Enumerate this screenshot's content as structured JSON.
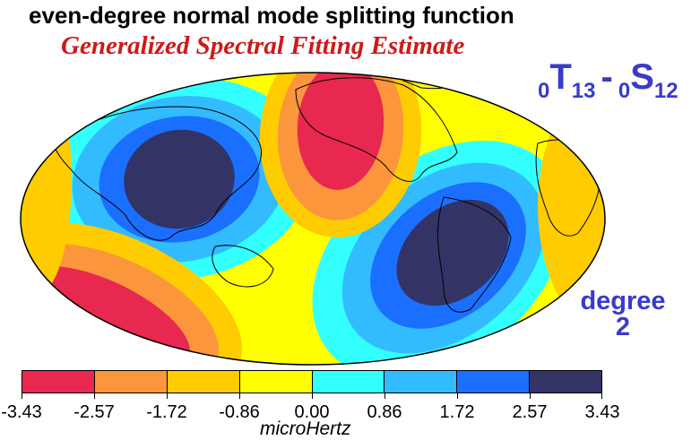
{
  "title": "even-degree normal mode splitting function",
  "subtitle": "Generalized Spectral Fitting Estimate",
  "mode": {
    "t_prefix": "0",
    "t_letter": "T",
    "t_sub": "13",
    "separator": "-",
    "s_prefix": "0",
    "s_letter": "S",
    "s_sub": "12"
  },
  "degree": {
    "word": "degree",
    "value": "2"
  },
  "colorbar": {
    "unit": "microHertz",
    "ticks": [
      "-3.43",
      "-2.57",
      "-1.72",
      "-0.86",
      "0.00",
      "0.86",
      "1.72",
      "2.57",
      "3.43"
    ],
    "colors": [
      "#e8284e",
      "#fb963c",
      "#ffcc00",
      "#ffff00",
      "#33ffff",
      "#33bbff",
      "#1a6fff",
      "#333366"
    ]
  },
  "map": {
    "projection": "mollweide",
    "colors": {
      "ocean_background": "#ffff00",
      "coastline": "#000000"
    }
  }
}
